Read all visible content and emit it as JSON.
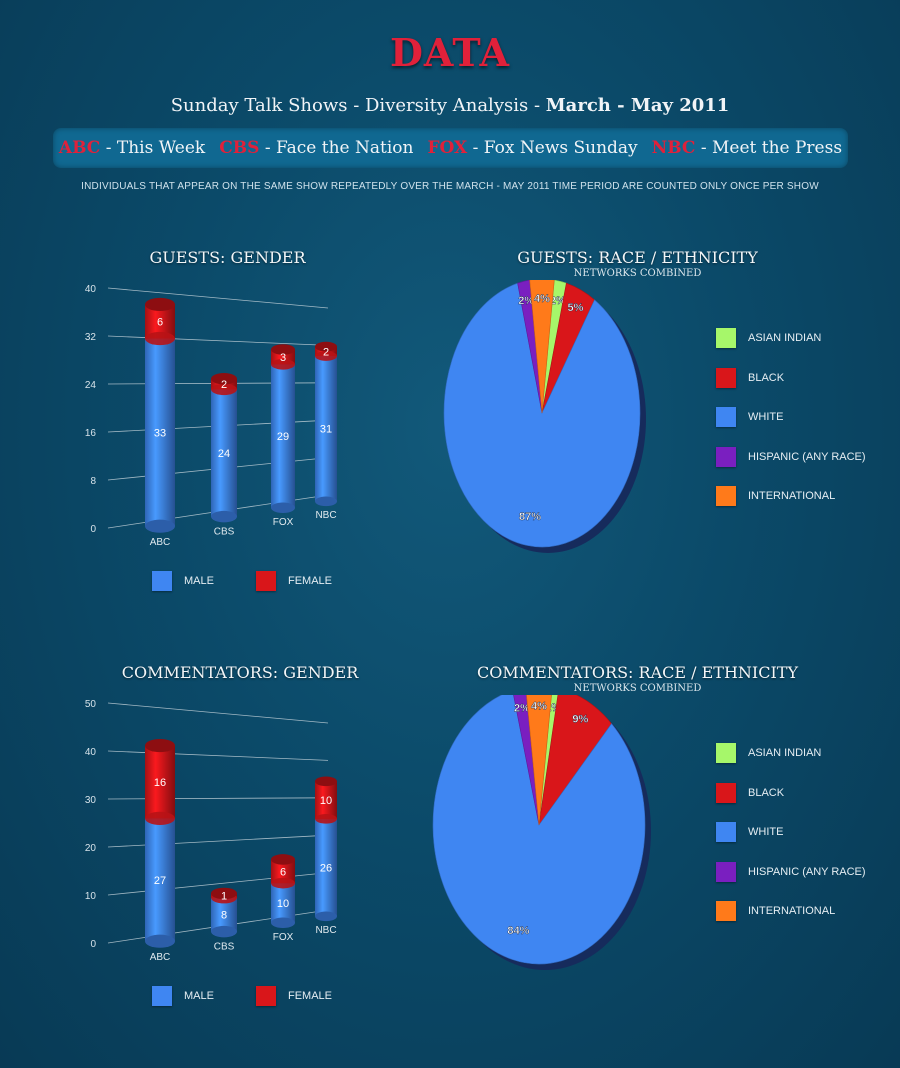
{
  "header": {
    "title": "DATA",
    "subtitle_main": "Sunday Talk Shows - Diversity Analysis - ",
    "subtitle_bold1": "March",
    "subtitle_dash": " - ",
    "subtitle_bold2": "May 2011",
    "shows": [
      {
        "network": "ABC",
        "show": " - This Week"
      },
      {
        "network": "CBS",
        "show": " - Face the Nation"
      },
      {
        "network": "FOX",
        "show": " - Fox News Sunday"
      },
      {
        "network": "NBC",
        "show": " - Meet the Press"
      }
    ],
    "note": "INDIVIDUALS THAT APPEAR ON THE SAME SHOW REPEATEDLY OVER THE MARCH - MAY 2011 TIME PERIOD ARE COUNTED ONLY ONCE PER SHOW"
  },
  "colors": {
    "male": "#3f86f2",
    "female": "#d9161a",
    "asian_indian": "#a6f76a",
    "black": "#d9161a",
    "white": "#3f86f2",
    "hispanic": "#7a1fc0",
    "international": "#ff7a1a"
  },
  "chart_data": [
    {
      "type": "bar",
      "title": "GUESTS: GENDER",
      "categories": [
        "ABC",
        "CBS",
        "FOX",
        "NBC"
      ],
      "series": [
        {
          "name": "MALE",
          "values": [
            33,
            24,
            29,
            31
          ]
        },
        {
          "name": "FEMALE",
          "values": [
            6,
            2,
            3,
            2
          ]
        }
      ],
      "ylim": [
        0,
        40
      ],
      "yticks": [
        "0",
        "8",
        "16",
        "24",
        "32",
        "40"
      ],
      "stacked": true,
      "grid": true,
      "legend": "bottom"
    },
    {
      "type": "pie",
      "title": "GUESTS: RACE / ETHNICITY",
      "subtitle": "NETWORKS COMBINED",
      "slices": [
        {
          "name": "ASIAN INDIAN",
          "value": 2,
          "label": "2%"
        },
        {
          "name": "BLACK",
          "value": 5,
          "label": "5%"
        },
        {
          "name": "WHITE",
          "value": 87,
          "label": "87%"
        },
        {
          "name": "HISPANIC (ANY RACE)",
          "value": 2,
          "label": "2%"
        },
        {
          "name": "INTERNATIONAL",
          "value": 4,
          "label": "4%"
        }
      ],
      "legend": "right"
    },
    {
      "type": "bar",
      "title": "COMMENTATORS: GENDER",
      "categories": [
        "ABC",
        "CBS",
        "FOX",
        "NBC"
      ],
      "series": [
        {
          "name": "MALE",
          "values": [
            27,
            8,
            10,
            26
          ]
        },
        {
          "name": "FEMALE",
          "values": [
            16,
            1,
            6,
            10
          ]
        }
      ],
      "ylim": [
        0,
        50
      ],
      "yticks": [
        "0",
        "10",
        "20",
        "30",
        "40",
        "50"
      ],
      "stacked": true,
      "grid": true,
      "legend": "bottom"
    },
    {
      "type": "pie",
      "title": "COMMENTATORS: RACE / ETHNICITY",
      "subtitle": "NETWORKS COMBINED",
      "slices": [
        {
          "name": "ASIAN INDIAN",
          "value": 1,
          "label": "1%"
        },
        {
          "name": "BLACK",
          "value": 9,
          "label": "9%"
        },
        {
          "name": "WHITE",
          "value": 84,
          "label": "84%"
        },
        {
          "name": "HISPANIC (ANY RACE)",
          "value": 2,
          "label": "2%"
        },
        {
          "name": "INTERNATIONAL",
          "value": 4,
          "label": "4%"
        }
      ],
      "legend": "right"
    }
  ]
}
